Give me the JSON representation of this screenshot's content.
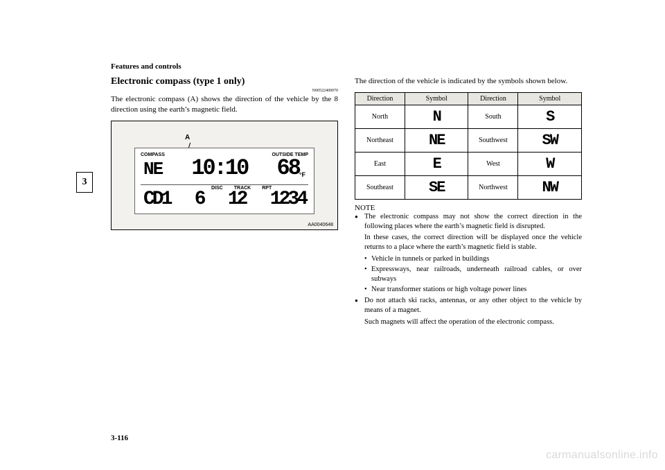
{
  "header": "Features and controls",
  "side_tab": "3",
  "page_number": "3-116",
  "watermark": "carmanualsonline.info",
  "left": {
    "title": "Electronic compass (type 1 only)",
    "code": "N00522400070",
    "paragraph": "The electronic compass (A) shows the direction of the vehicle by the 8 direction using the earth’s magnetic field.",
    "figure": {
      "label_a": "A",
      "lcd_compass_label": "COMPASS",
      "lcd_temp_label": "OUTSIDE TEMP",
      "compass_value": "NE",
      "time_value": "10:10",
      "temp_value": "68",
      "temp_unit": "°F",
      "row2_labels": [
        "DISC",
        "TRACK",
        "RPT"
      ],
      "cd_label": "CD1",
      "disc_value": "6",
      "track_value": "12",
      "rpt_value": "1234",
      "fig_code": "AA0040648"
    }
  },
  "right": {
    "intro": "The direction of the vehicle is indicated by the symbols shown below.",
    "table": {
      "headers": [
        "Direction",
        "Symbol",
        "Direction",
        "Symbol"
      ],
      "rows": [
        {
          "d1": "North",
          "s1": "N",
          "d2": "South",
          "s2": "S"
        },
        {
          "d1": "Northeast",
          "s1": "NE",
          "d2": "Southwest",
          "s2": "SW"
        },
        {
          "d1": "East",
          "s1": "E",
          "d2": "West",
          "s2": "W"
        },
        {
          "d1": "Southeast",
          "s1": "SE",
          "d2": "Northwest",
          "s2": "NW"
        }
      ]
    },
    "note_label": "NOTE",
    "notes": [
      {
        "text": "The electronic compass may not show the correct direction in the following places where the earth’s magnetic field is disrupted.",
        "para": "In these cases, the correct direction will be displayed once the vehicle returns to a place where the earth’s magnetic field is stable.",
        "sub": [
          "Vehicle in tunnels or parked in buildings",
          "Expressways, near railroads, underneath railroad cables, or over subways",
          "Near transformer stations or high voltage power lines"
        ]
      },
      {
        "text": "Do not attach ski racks, antennas, or any other object to the vehicle by means of a magnet.",
        "para": "Such magnets will affect the operation of the electronic compass."
      }
    ]
  }
}
